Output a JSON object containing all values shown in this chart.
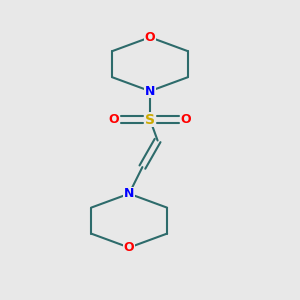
{
  "bg_color": "#e8e8e8",
  "bond_color": "#2d6b6b",
  "N_color": "#0000ff",
  "O_color": "#ff0000",
  "S_color": "#ccaa00",
  "line_width": 1.5,
  "font_size_atom": 9,
  "fig_bg": "#e8e8e8",
  "figsize": [
    3.0,
    3.0
  ],
  "dpi": 100,
  "xlim": [
    -1.1,
    1.1
  ],
  "ylim": [
    -1.55,
    1.55
  ]
}
